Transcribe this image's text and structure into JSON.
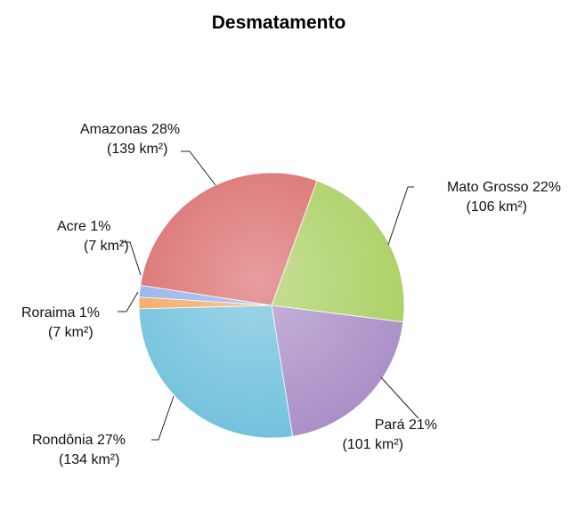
{
  "chart_data": {
    "type": "pie",
    "title": "Desmatamento",
    "unit": "km²",
    "categories": [
      "Mato Grosso",
      "Pará",
      "Rondônia",
      "Roraima",
      "Acre",
      "Amazonas"
    ],
    "values": [
      106,
      101,
      134,
      7,
      7,
      139
    ],
    "percent_labels": [
      "22%",
      "21%",
      "27%",
      "1%",
      "1%",
      "28%"
    ],
    "value_labels": [
      "(106 km²)",
      "(101 km²)",
      "(134 km²)",
      "(7 km²)",
      "(7 km²)",
      "(139 km²)"
    ],
    "colors": [
      "#a9cf60",
      "#a98dc6",
      "#6fc0dc",
      "#f2a65d",
      "#8fb0e8",
      "#d96a6a"
    ],
    "start_angle_deg": 20,
    "direction": "clockwise",
    "legend": "none"
  }
}
